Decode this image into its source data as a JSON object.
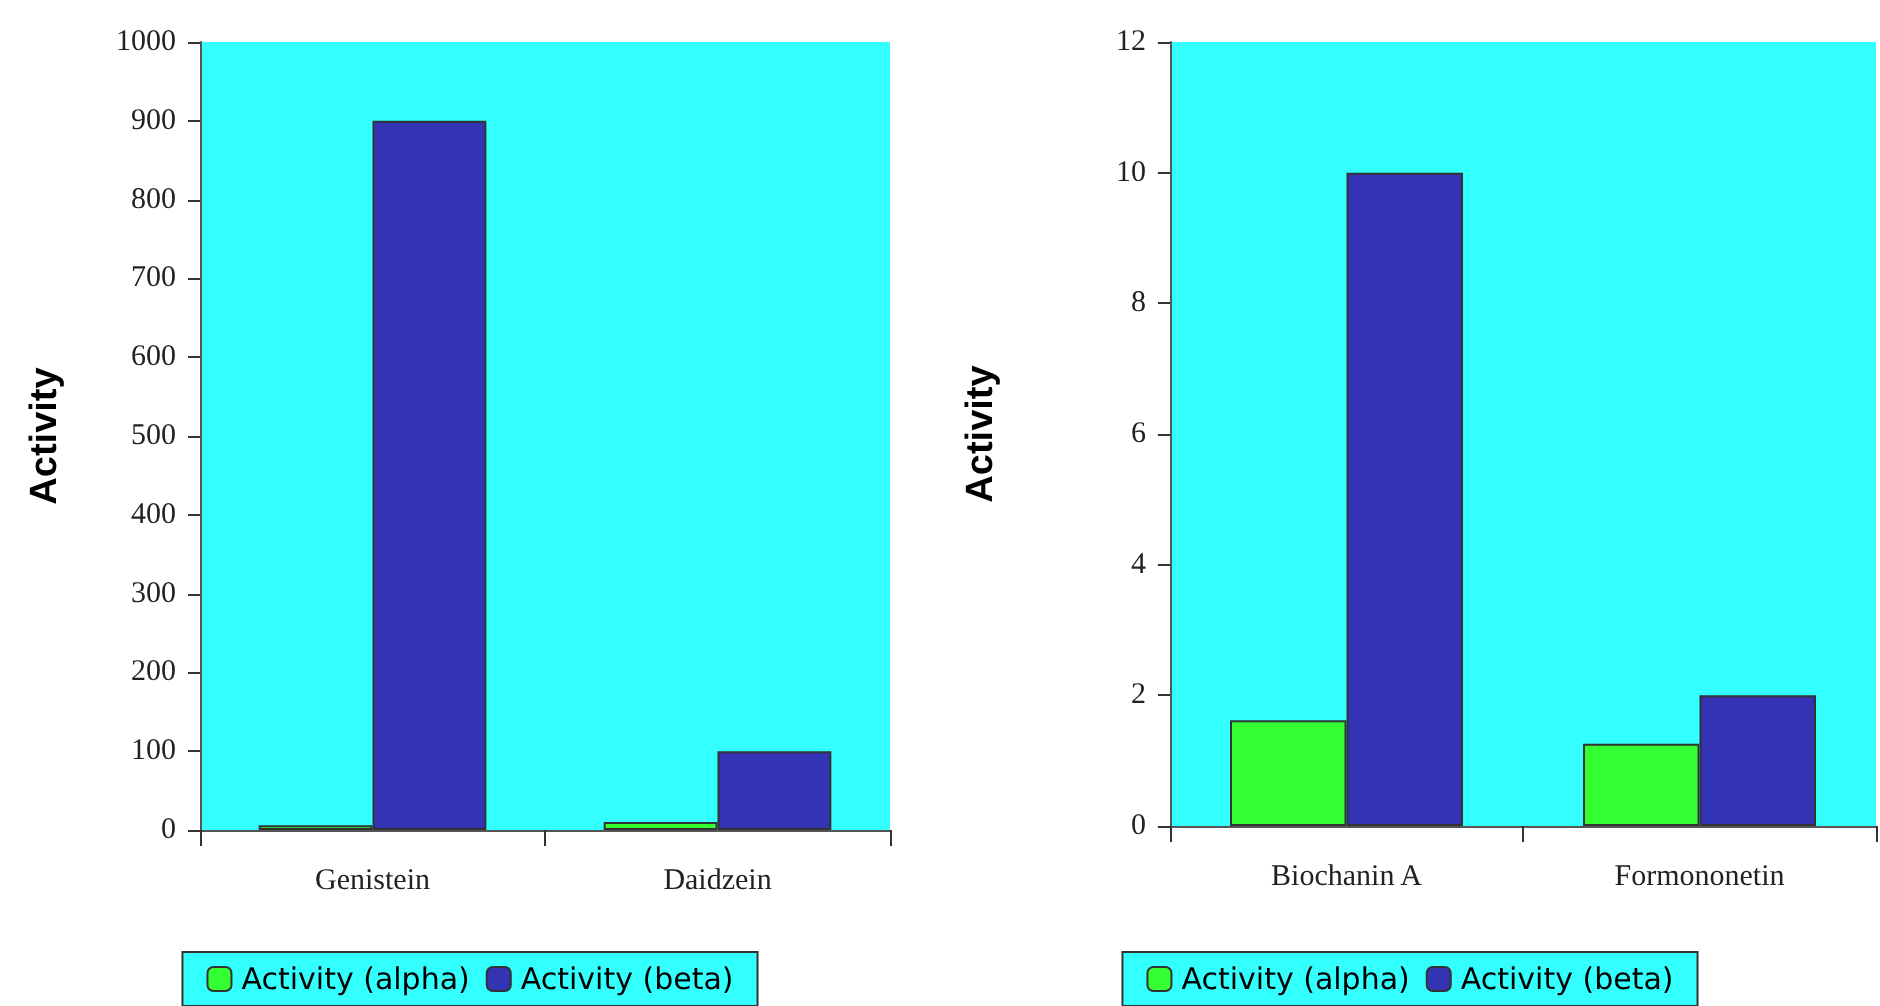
{
  "chart_data": [
    {
      "type": "bar",
      "ylabel": "Activity",
      "categories": [
        "Genistein",
        "Daidzein"
      ],
      "series": [
        {
          "name": "Activity (alpha)",
          "color": "#33ff33",
          "values": [
            6,
            10
          ]
        },
        {
          "name": "Activity (beta)",
          "color": "#3333b3",
          "values": [
            900,
            100
          ]
        }
      ],
      "ylim": [
        0,
        1000
      ],
      "yticks": [
        0,
        100,
        200,
        300,
        400,
        500,
        600,
        700,
        800,
        900,
        1000
      ],
      "grid": false,
      "legend": "bottom"
    },
    {
      "type": "bar",
      "ylabel": "Activity",
      "categories": [
        "Biochanin A",
        "Formononetin"
      ],
      "series": [
        {
          "name": "Activity (alpha)",
          "color": "#33ff33",
          "values": [
            1.62,
            1.26
          ]
        },
        {
          "name": "Activity (beta)",
          "color": "#3333b3",
          "values": [
            10,
            2
          ]
        }
      ],
      "ylim": [
        0,
        12
      ],
      "yticks": [
        0,
        2,
        4,
        6,
        8,
        10,
        12
      ],
      "grid": false,
      "legend": "bottom"
    }
  ]
}
